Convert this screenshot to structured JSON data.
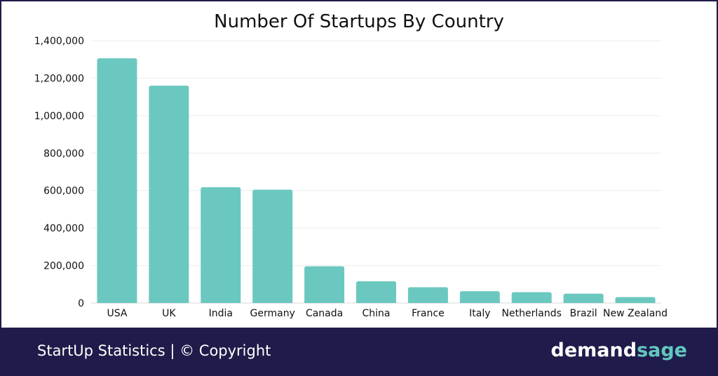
{
  "chart_data": {
    "type": "bar",
    "title": "Number Of Startups By Country",
    "xlabel": "",
    "ylabel": "",
    "categories": [
      "USA",
      "UK",
      "India",
      "Germany",
      "Canada",
      "China",
      "France",
      "Italy",
      "Netherlands",
      "Brazil",
      "New Zealand"
    ],
    "values": [
      1306000,
      1160000,
      618000,
      605000,
      196000,
      116000,
      84000,
      63000,
      58000,
      50000,
      32000
    ],
    "ylim": [
      0,
      1400000
    ],
    "yticks": [
      "0",
      "200,000",
      "400,000",
      "600,000",
      "800,000",
      "1,000,000",
      "1,200,000",
      "1,400,000"
    ],
    "grid": true,
    "bar_color": "#6bc8c0"
  },
  "footer": {
    "caption": "StartUp Statistics | © Copyright",
    "brand_part1": "demand",
    "brand_part2": "sage"
  },
  "colors": {
    "footer_bg": "#1f1b4a",
    "accent": "#62c7bf"
  }
}
